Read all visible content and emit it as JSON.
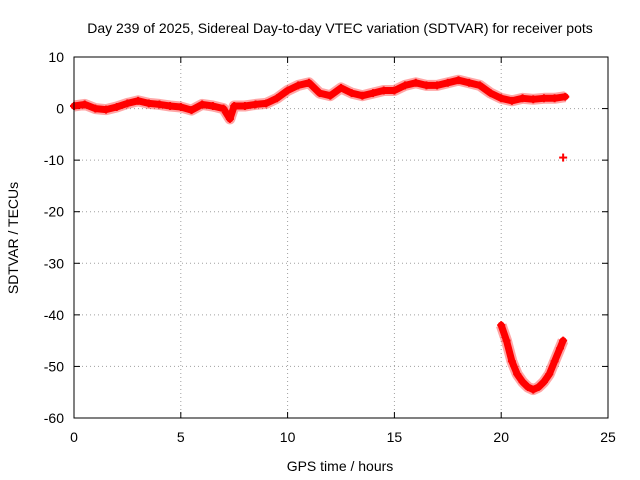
{
  "chart_data": {
    "type": "scatter",
    "title": "Day 239 of 2025, Sidereal Day-to-day VTEC variation (SDTVAR) for receiver pots",
    "xlabel": "GPS time / hours",
    "ylabel": "SDTVAR / TECUs",
    "xlim": [
      0,
      25
    ],
    "ylim": [
      -60,
      10
    ],
    "xticks": [
      "0",
      "5",
      "10",
      "15",
      "20",
      "25"
    ],
    "yticks": [
      "10",
      "0",
      "-10",
      "-20",
      "-30",
      "-40",
      "-50",
      "-60"
    ],
    "grid": true,
    "series": [
      {
        "name": "SDTVAR",
        "color": "#ff0000",
        "x": [
          0,
          0.5,
          1,
          1.5,
          2,
          2.5,
          3,
          3.5,
          4,
          4.5,
          5,
          5.5,
          6,
          6.5,
          7,
          7.3,
          7.5,
          8,
          8.5,
          9,
          9.5,
          10,
          10.5,
          11,
          11.5,
          12,
          12.5,
          13,
          13.5,
          14,
          14.5,
          15,
          15.5,
          16,
          16.5,
          17,
          17.5,
          18,
          18.5,
          19,
          19.5,
          20,
          20.5,
          21,
          21.5,
          22,
          22.5,
          23
        ],
        "y": [
          0.5,
          0.8,
          0,
          -0.2,
          0.3,
          1,
          1.5,
          1,
          0.8,
          0.5,
          0.3,
          -0.3,
          0.8,
          0.5,
          0,
          -2,
          0.5,
          0.5,
          0.8,
          1,
          2,
          3.5,
          4.5,
          5,
          3,
          2.5,
          4,
          3,
          2.5,
          3,
          3.5,
          3.5,
          4.5,
          5,
          4.5,
          4.5,
          5,
          5.5,
          5,
          4.5,
          3,
          2,
          1.5,
          2,
          1.8,
          2,
          2,
          2.3
        ]
      },
      {
        "name": "SDTVAR segment",
        "color": "#ff0000",
        "x": [
          20,
          20.25,
          20.5,
          20.75,
          21,
          21.25,
          21.5,
          21.75,
          22,
          22.25,
          22.5,
          22.75,
          22.9
        ],
        "y": [
          -42,
          -45,
          -49,
          -51.5,
          -53,
          -54,
          -54.5,
          -54,
          -53,
          -51.5,
          -49,
          -46.5,
          -45
        ]
      },
      {
        "name": "SDTVAR isolated",
        "color": "#ff0000",
        "x": [
          22.9
        ],
        "y": [
          -9.5
        ]
      }
    ]
  }
}
